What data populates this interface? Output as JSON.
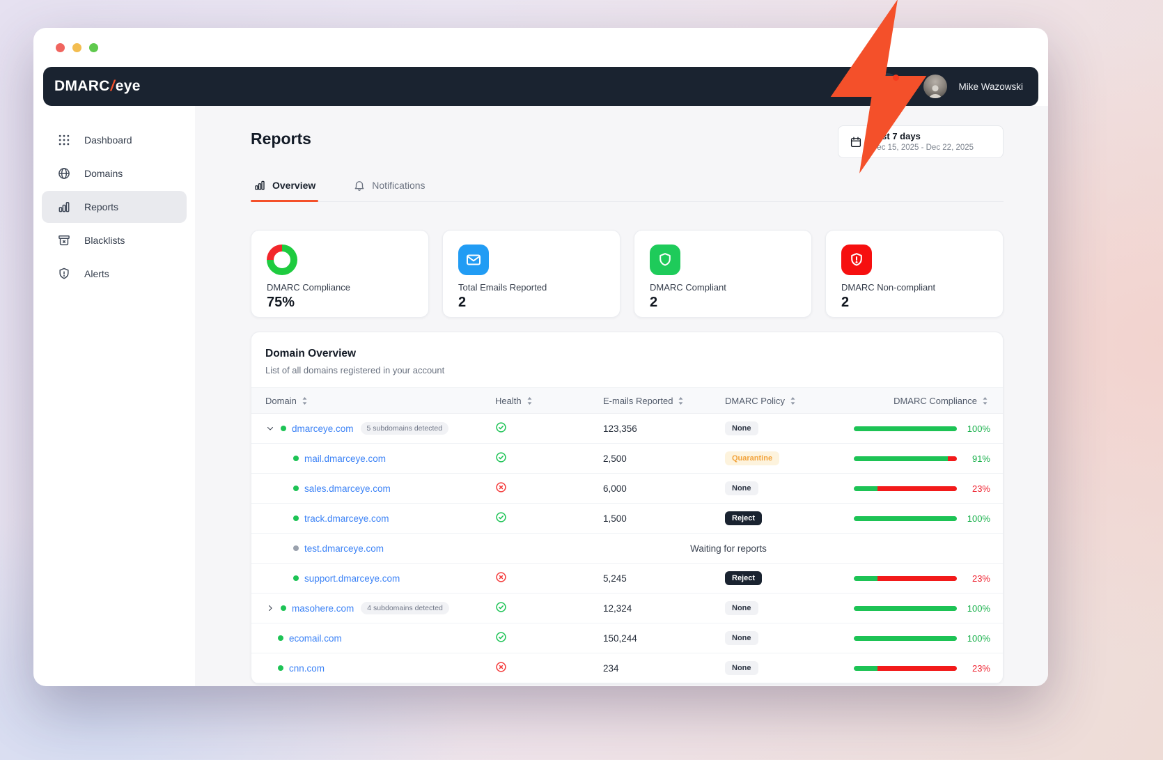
{
  "window": {
    "user_name": "Mike Wazowski",
    "traffic_lights": [
      {
        "name": "close",
        "color": "#f0655f"
      },
      {
        "name": "minimize",
        "color": "#f3bd50"
      },
      {
        "name": "zoom",
        "color": "#5fc94d"
      }
    ]
  },
  "brand": {
    "name_left": "DMARC",
    "slash": "/",
    "name_right": "eye"
  },
  "colors": {
    "accent": "#f4502a",
    "navy": "#1a2330",
    "green": "#1dc355",
    "red": "#f21a1a",
    "link": "#3b82f6",
    "warn": "#f2a33c",
    "blue": "#219cf4"
  },
  "sidebar": {
    "items": [
      {
        "label": "Dashboard",
        "icon": "dashboard-grid-icon",
        "active": false
      },
      {
        "label": "Domains",
        "icon": "globe-icon",
        "active": false
      },
      {
        "label": "Reports",
        "icon": "bar-chart-icon",
        "active": true
      },
      {
        "label": "Blacklists",
        "icon": "blacklist-box-icon",
        "active": false
      },
      {
        "label": "Alerts",
        "icon": "shield-alert-icon",
        "active": false
      }
    ]
  },
  "page": {
    "title": "Reports"
  },
  "date_filter": {
    "icon": "calendar-icon",
    "label": "Last 7 days",
    "range": "Dec 15, 2025 - Dec 22, 2025"
  },
  "tabs": [
    {
      "label": "Overview",
      "icon": "bar-chart-icon",
      "active": true
    },
    {
      "label": "Notifications",
      "icon": "bell-icon",
      "active": false
    }
  ],
  "stats": [
    {
      "label": "DMARC Compliance",
      "value": "75%",
      "icon": "donut-chart-icon",
      "donut": {
        "compliant_pct": 75,
        "noncompliant_pct": 25,
        "compliant_color": "#1ecb3f",
        "noncompliant_color": "#f2262b"
      }
    },
    {
      "label": "Total Emails Reported",
      "value": "2",
      "icon": "email-icon",
      "icon_bg": "#219cf4"
    },
    {
      "label": "DMARC Compliant",
      "value": "2",
      "icon": "shield-check-icon",
      "icon_bg": "#1ecb5a"
    },
    {
      "label": "DMARC Non-compliant",
      "value": "2",
      "icon": "shield-exclamation-icon",
      "icon_bg": "#f60f0f"
    }
  ],
  "table": {
    "title": "Domain Overview",
    "subtitle": "List of all domains registered in your account",
    "columns": [
      "Domain",
      "Health",
      "E-mails Reported",
      "DMARC Policy",
      "DMARC Compliance"
    ],
    "waiting_text": "Waiting for reports",
    "rows": [
      {
        "domain": "dmarceye.com",
        "indent": 0,
        "expander": "down",
        "status_dot": "green",
        "badge": "5 subdomains detected",
        "health": "pass",
        "emails": "123,356",
        "policy": "None",
        "compliance_pct": 100,
        "compliance_label": "100%"
      },
      {
        "domain": "mail.dmarceye.com",
        "indent": 1,
        "status_dot": "green",
        "health": "pass",
        "emails": "2,500",
        "policy": "Quarantine",
        "compliance_pct": 91,
        "compliance_label": "91%"
      },
      {
        "domain": "sales.dmarceye.com",
        "indent": 1,
        "status_dot": "green",
        "health": "fail",
        "emails": "6,000",
        "policy": "None",
        "compliance_pct": 23,
        "compliance_label": "23%"
      },
      {
        "domain": "track.dmarceye.com",
        "indent": 1,
        "status_dot": "green",
        "health": "pass",
        "emails": "1,500",
        "policy": "Reject",
        "compliance_pct": 100,
        "compliance_label": "100%"
      },
      {
        "domain": "test.dmarceye.com",
        "indent": 1,
        "status_dot": "gray",
        "waiting": true
      },
      {
        "domain": "support.dmarceye.com",
        "indent": 1,
        "status_dot": "green",
        "health": "fail",
        "emails": "5,245",
        "policy": "Reject",
        "compliance_pct": 23,
        "compliance_label": "23%"
      },
      {
        "domain": "masohere.com",
        "indent": 0,
        "expander": "right",
        "status_dot": "green",
        "badge": "4 subdomains detected",
        "health": "pass",
        "emails": "12,324",
        "policy": "None",
        "compliance_pct": 100,
        "compliance_label": "100%"
      },
      {
        "domain": "ecomail.com",
        "indent": 0,
        "status_dot": "green",
        "health": "pass",
        "emails": "150,244",
        "policy": "None",
        "compliance_pct": 100,
        "compliance_label": "100%"
      },
      {
        "domain": "cnn.com",
        "indent": 0,
        "status_dot": "green",
        "health": "fail",
        "emails": "234",
        "policy": "None",
        "compliance_pct": 23,
        "compliance_label": "23%"
      }
    ]
  }
}
